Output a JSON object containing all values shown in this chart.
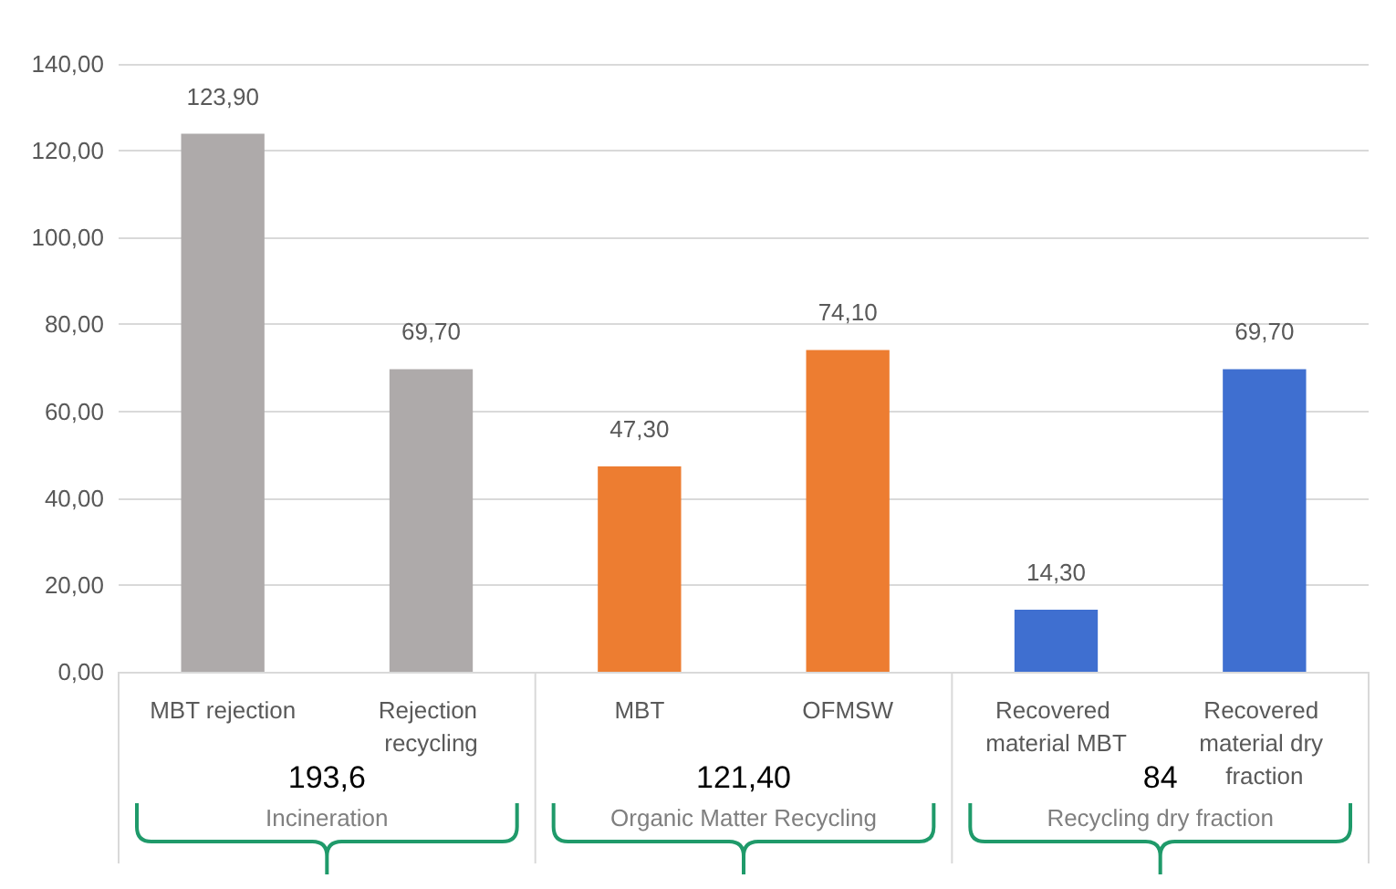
{
  "chart_data": {
    "type": "bar",
    "categories": [
      "MBT rejection",
      "Rejection recycling",
      "MBT",
      "OFMSW",
      "Recovered material MBT",
      "Recovered material dry fraction"
    ],
    "values": [
      123.9,
      69.7,
      47.3,
      74.1,
      14.3,
      69.7
    ],
    "colors": [
      "#aeaaaa",
      "#aeaaaa",
      "#ed7d31",
      "#ed7d31",
      "#3f6fd0",
      "#3f6fd0"
    ],
    "value_labels": [
      "123,90",
      "69,70",
      "47,30",
      "74,10",
      "14,30",
      "69,70"
    ],
    "ylim": [
      0,
      140
    ],
    "yticks": [
      {
        "value": 0,
        "label": "0,00"
      },
      {
        "value": 20,
        "label": "20,00"
      },
      {
        "value": 40,
        "label": "40,00"
      },
      {
        "value": 60,
        "label": "60,00"
      },
      {
        "value": 80,
        "label": "80,00"
      },
      {
        "value": 100,
        "label": "100,00"
      },
      {
        "value": 120,
        "label": "120,00"
      },
      {
        "value": 140,
        "label": "140,00"
      }
    ],
    "grid": "y",
    "annotations": [
      "Incineration",
      "Organic Matter Recycling",
      "Recycling dry fraction",
      "193,6",
      "121,40",
      "84"
    ]
  }
}
